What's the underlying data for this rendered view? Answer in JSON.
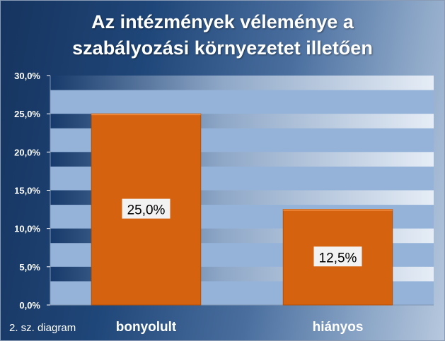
{
  "chart_data": {
    "type": "bar",
    "title_lines": [
      "Az intézmények véleménye a",
      "szabályozási környezetet illetően"
    ],
    "categories": [
      "bonyolult",
      "hiányos"
    ],
    "values": [
      25.0,
      12.5
    ],
    "data_labels": [
      "25,0%",
      "12,5%"
    ],
    "ylim": [
      0,
      30
    ],
    "yticks": [
      0,
      5,
      10,
      15,
      20,
      25,
      30
    ],
    "ytick_labels": [
      "0,0%",
      "5,0%",
      "10,0%",
      "15,0%",
      "20,0%",
      "25,0%",
      "30,0%"
    ],
    "xlabel": "",
    "ylabel": "",
    "grid": true,
    "legend": "none",
    "bar_color": "#d4620f"
  },
  "footnote": "2. sz. diagram"
}
